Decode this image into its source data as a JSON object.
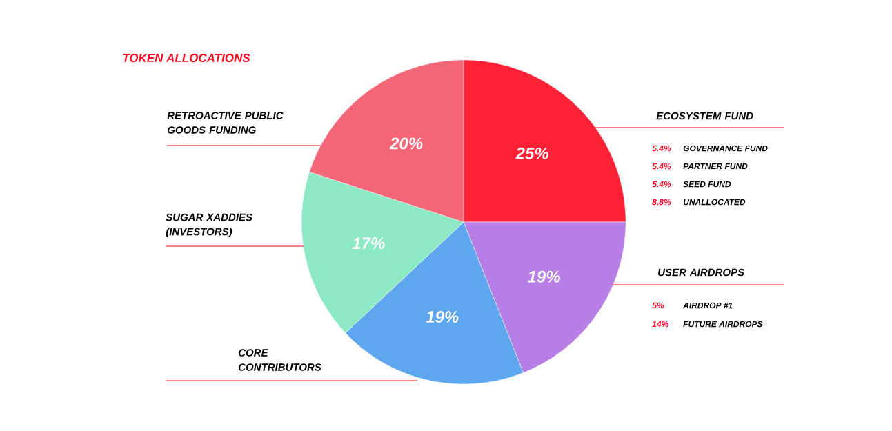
{
  "chart_data": {
    "type": "pie",
    "title": "TOKEN ALLOCATIONS",
    "categories": [
      "ECOSYSTEM FUND",
      "USER AIRDROPS",
      "CORE CONTRIBUTORS",
      "SUGAR XADDIES (INVESTORS)",
      "RETROACTIVE PUBLIC GOODS FUNDING"
    ],
    "values": [
      25,
      19,
      19,
      17,
      20
    ],
    "colors": [
      "#ff2236",
      "#b77fe6",
      "#5ea6ee",
      "#8de8c4",
      "#f36678"
    ],
    "value_labels": [
      "25%",
      "19%",
      "19%",
      "17%",
      "20%"
    ],
    "annotations": [
      "5.4%",
      "GOVERNANCE FUND",
      "5.4%",
      "PARTNER FUND",
      "5.4%",
      "SEED FUND",
      "8.8%",
      "UNALLOCATED",
      "5%",
      "AIRDROP #1",
      "14%",
      "FUTURE AIRDROPS"
    ]
  }
}
